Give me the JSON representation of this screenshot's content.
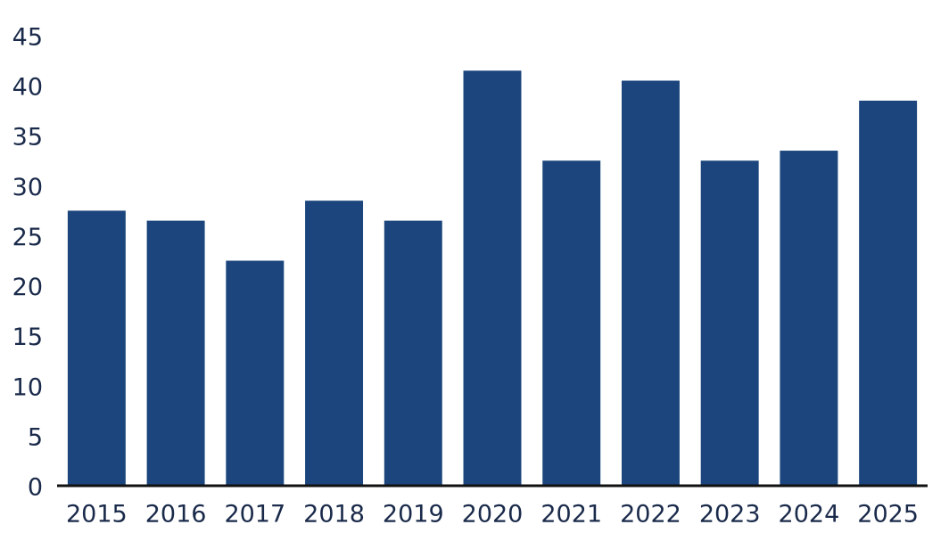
{
  "chart_data": {
    "type": "bar",
    "categories": [
      "2015",
      "2016",
      "2017",
      "2018",
      "2019",
      "2020",
      "2021",
      "2022",
      "2023",
      "2024",
      "2025"
    ],
    "values": [
      27.5,
      26.5,
      22.5,
      28.5,
      26.5,
      41.5,
      32.5,
      40.5,
      32.5,
      33.5,
      38.5
    ],
    "color": "#1b457c",
    "ylim": [
      0,
      45
    ],
    "yticks": [
      0,
      5,
      10,
      15,
      20,
      25,
      30,
      35,
      40,
      45
    ],
    "grid": false
  }
}
